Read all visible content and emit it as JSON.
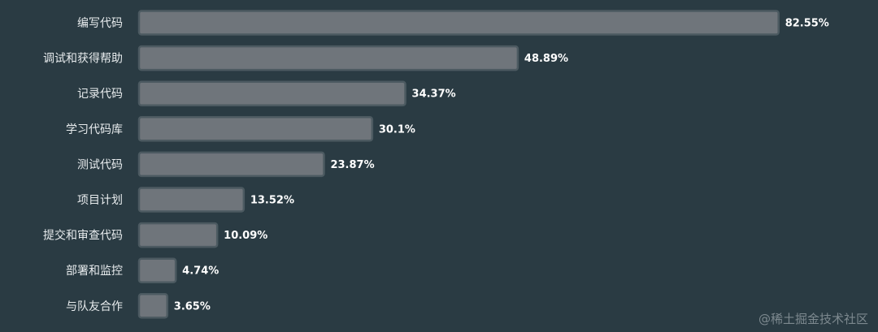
{
  "chart_data": {
    "type": "bar",
    "orientation": "horizontal",
    "categories": [
      "编写代码",
      "调试和获得帮助",
      "记录代码",
      "学习代码库",
      "测试代码",
      "项目计划",
      "提交和审查代码",
      "部署和监控",
      "与队友合作"
    ],
    "values": [
      82.55,
      48.89,
      34.37,
      30.1,
      23.87,
      13.52,
      10.09,
      4.74,
      3.65
    ],
    "value_labels": [
      "82.55%",
      "48.89%",
      "34.37%",
      "30.1%",
      "23.87%",
      "13.52%",
      "10.09%",
      "4.74%",
      "3.65%"
    ],
    "xlim": [
      0,
      100
    ],
    "grid": false,
    "legend": "none",
    "colors": {
      "background": "#2a3b43",
      "bar_fill": "#6f757b",
      "bar_stroke": "#4c5a61",
      "label": "#e8ecee",
      "value_label": "#ffffff"
    }
  },
  "watermark": "@稀土掘金技术社区"
}
